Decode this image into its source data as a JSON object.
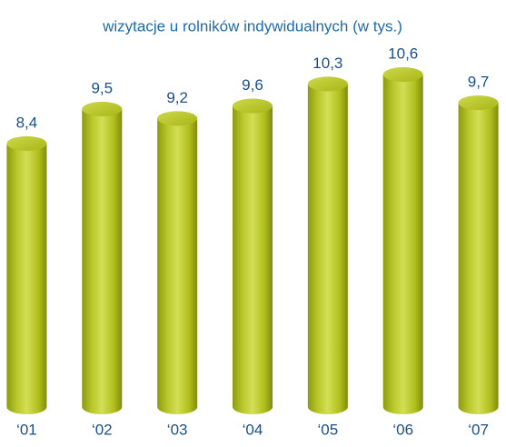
{
  "chart_data": {
    "type": "bar",
    "title": "wizytacje u rolników indywidualnych (w tys.)",
    "categories": [
      "‘01",
      "‘02",
      "‘03",
      "‘04",
      "‘05",
      "‘06",
      "‘07"
    ],
    "values": [
      8.4,
      9.5,
      9.2,
      9.6,
      10.3,
      10.6,
      9.7
    ],
    "value_labels": [
      "8,4",
      "9,5",
      "9,2",
      "9,6",
      "10,3",
      "10,6",
      "9,7"
    ],
    "color": "#b3c11c"
  }
}
